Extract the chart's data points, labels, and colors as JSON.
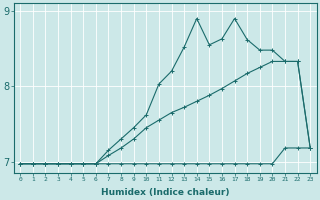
{
  "title": "",
  "xlabel": "Humidex (Indice chaleur)",
  "ylabel": "",
  "background_color": "#cce8e8",
  "grid_color": "#ffffff",
  "line_color": "#1a6b6b",
  "x_values": [
    0,
    1,
    2,
    3,
    4,
    5,
    6,
    7,
    8,
    9,
    10,
    11,
    12,
    13,
    14,
    15,
    16,
    17,
    18,
    19,
    20,
    21,
    22,
    23
  ],
  "series1": [
    6.97,
    6.97,
    6.97,
    6.97,
    6.97,
    6.97,
    6.97,
    6.97,
    6.97,
    6.97,
    6.97,
    6.97,
    6.97,
    6.97,
    6.97,
    6.97,
    6.97,
    6.97,
    6.97,
    6.97,
    6.97,
    7.18,
    7.18,
    7.18
  ],
  "series2": [
    6.97,
    6.97,
    6.97,
    6.97,
    6.97,
    6.97,
    6.97,
    7.08,
    7.18,
    7.3,
    7.45,
    7.55,
    7.65,
    7.72,
    7.8,
    7.88,
    7.97,
    8.07,
    8.17,
    8.25,
    8.33,
    8.33,
    8.33,
    7.18
  ],
  "series3": [
    6.97,
    6.97,
    6.97,
    6.97,
    6.97,
    6.97,
    6.97,
    7.15,
    7.3,
    7.45,
    7.62,
    8.03,
    8.2,
    8.52,
    8.9,
    8.55,
    8.63,
    8.9,
    8.62,
    8.48,
    8.48,
    8.33,
    8.33,
    7.18
  ],
  "ylim": [
    6.85,
    9.1
  ],
  "yticks": [
    7.0,
    8.0,
    9.0
  ],
  "xlim": [
    -0.5,
    23.5
  ],
  "marker": "+",
  "markersize": 3,
  "linewidth": 0.8
}
